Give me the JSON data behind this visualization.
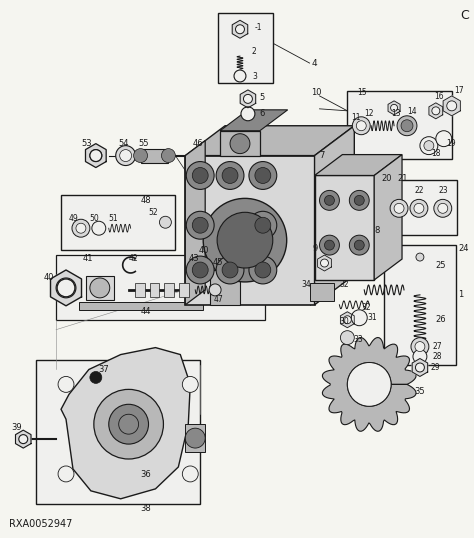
{
  "background_color": "#f5f5f0",
  "line_color": "#1a1a1a",
  "fill_light": "#d8d8d8",
  "fill_mid": "#b8b8b8",
  "fill_dark": "#888888",
  "fill_white": "#f0f0ee",
  "watermark": "RXA0052947",
  "corner_text": "C",
  "fig_width": 4.74,
  "fig_height": 5.38,
  "dpi": 100
}
